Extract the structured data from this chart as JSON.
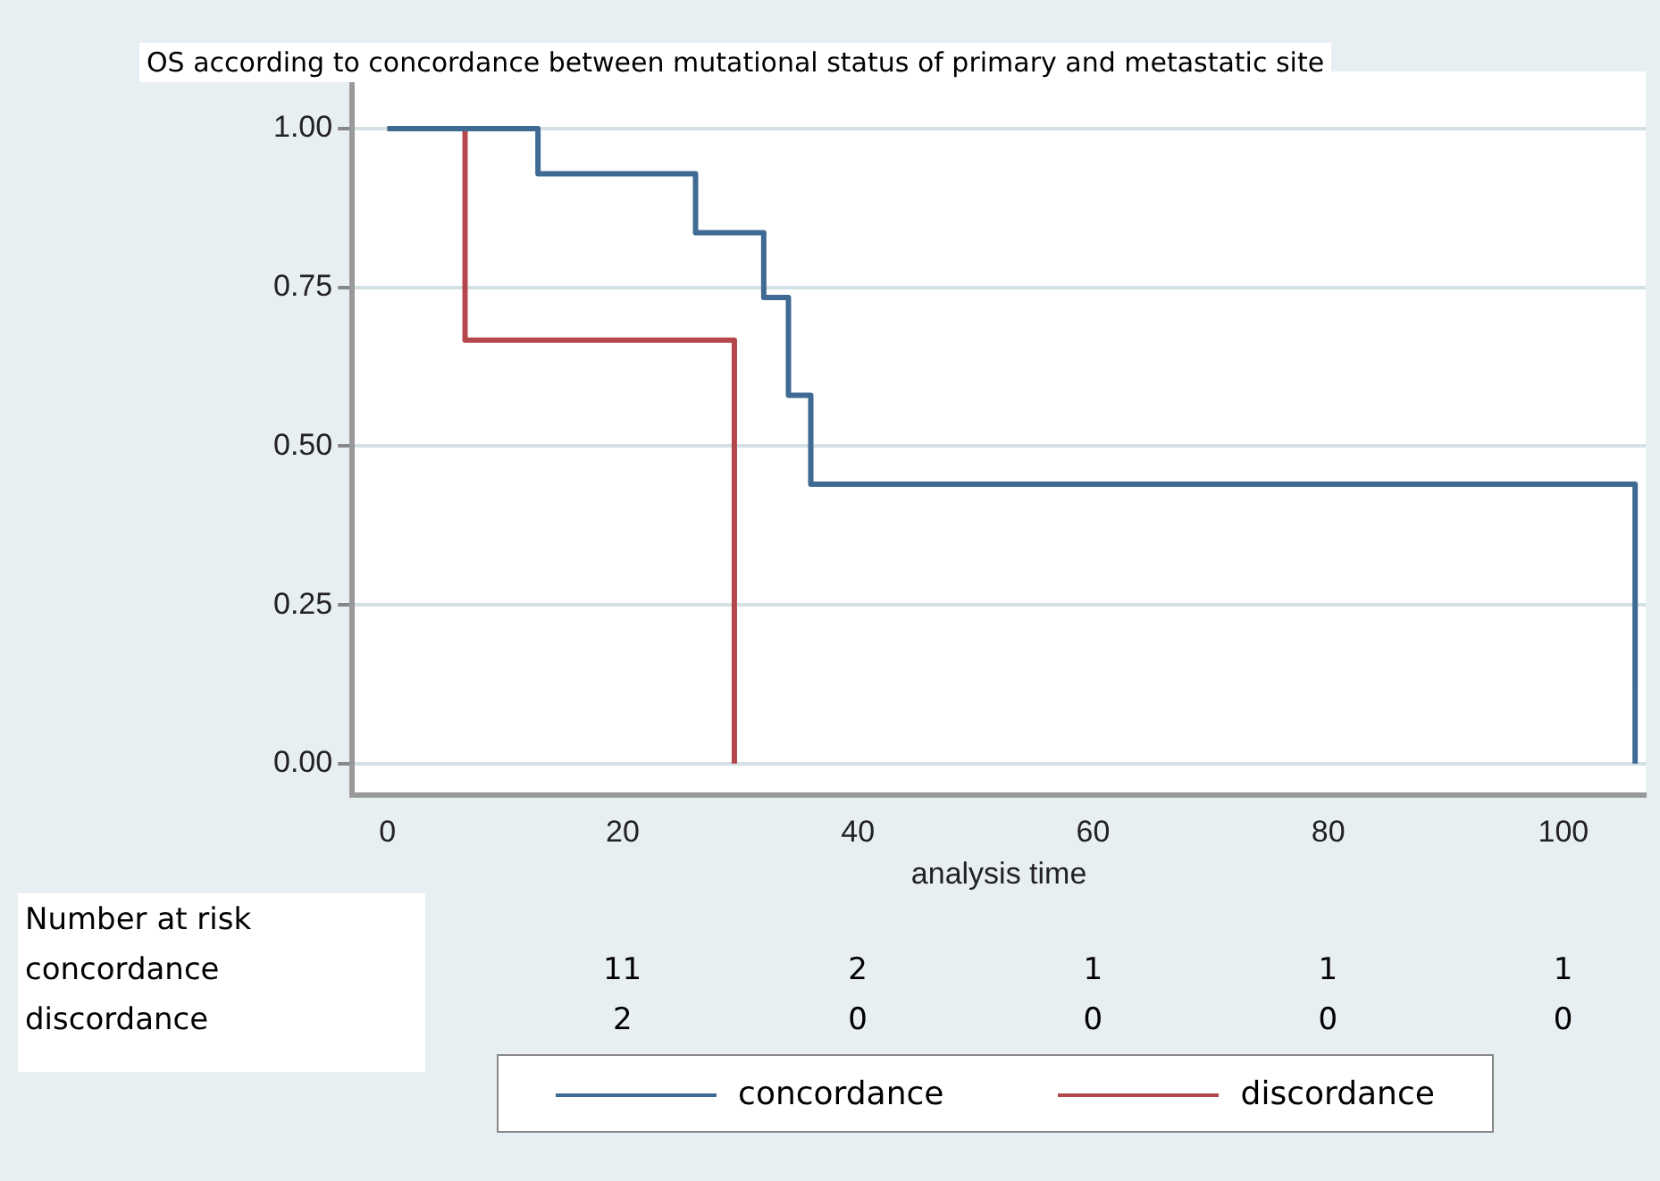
{
  "chart_data": {
    "type": "step",
    "title": "OS according to concordance between mutational status of primary and metastatic site",
    "xlabel": "analysis time",
    "xlim": [
      -3,
      107
    ],
    "xticks": [
      0,
      20,
      40,
      60,
      80,
      100
    ],
    "ylim": [
      -0.05,
      1.09
    ],
    "yticks": [
      {
        "value": 0,
        "label": "0.00"
      },
      {
        "value": 0.25,
        "label": "0.25"
      },
      {
        "value": 0.5,
        "label": "0.50"
      },
      {
        "value": 0.75,
        "label": "0.75"
      },
      {
        "value": 1,
        "label": "1.00"
      }
    ],
    "grid": "y",
    "legend": "bottom",
    "marker": "none",
    "line_style": "solid",
    "series": [
      {
        "name": "concordance",
        "color": "#3e6a94",
        "x": [
          0,
          12.8,
          26.2,
          32,
          34.1,
          36,
          106.1
        ],
        "values": [
          1,
          0.929,
          0.836,
          0.734,
          0.58,
          0.44,
          0
        ]
      },
      {
        "name": "discordance",
        "color": "#b5474c",
        "x": [
          0,
          6.6,
          29.5
        ],
        "values": [
          1,
          0.667,
          0
        ]
      }
    ],
    "annotations": [
      "Number at risk",
      "concordance",
      "discordance",
      "11",
      "2",
      "1",
      "1",
      "1",
      "2",
      "0",
      "0",
      "0",
      "0"
    ]
  }
}
